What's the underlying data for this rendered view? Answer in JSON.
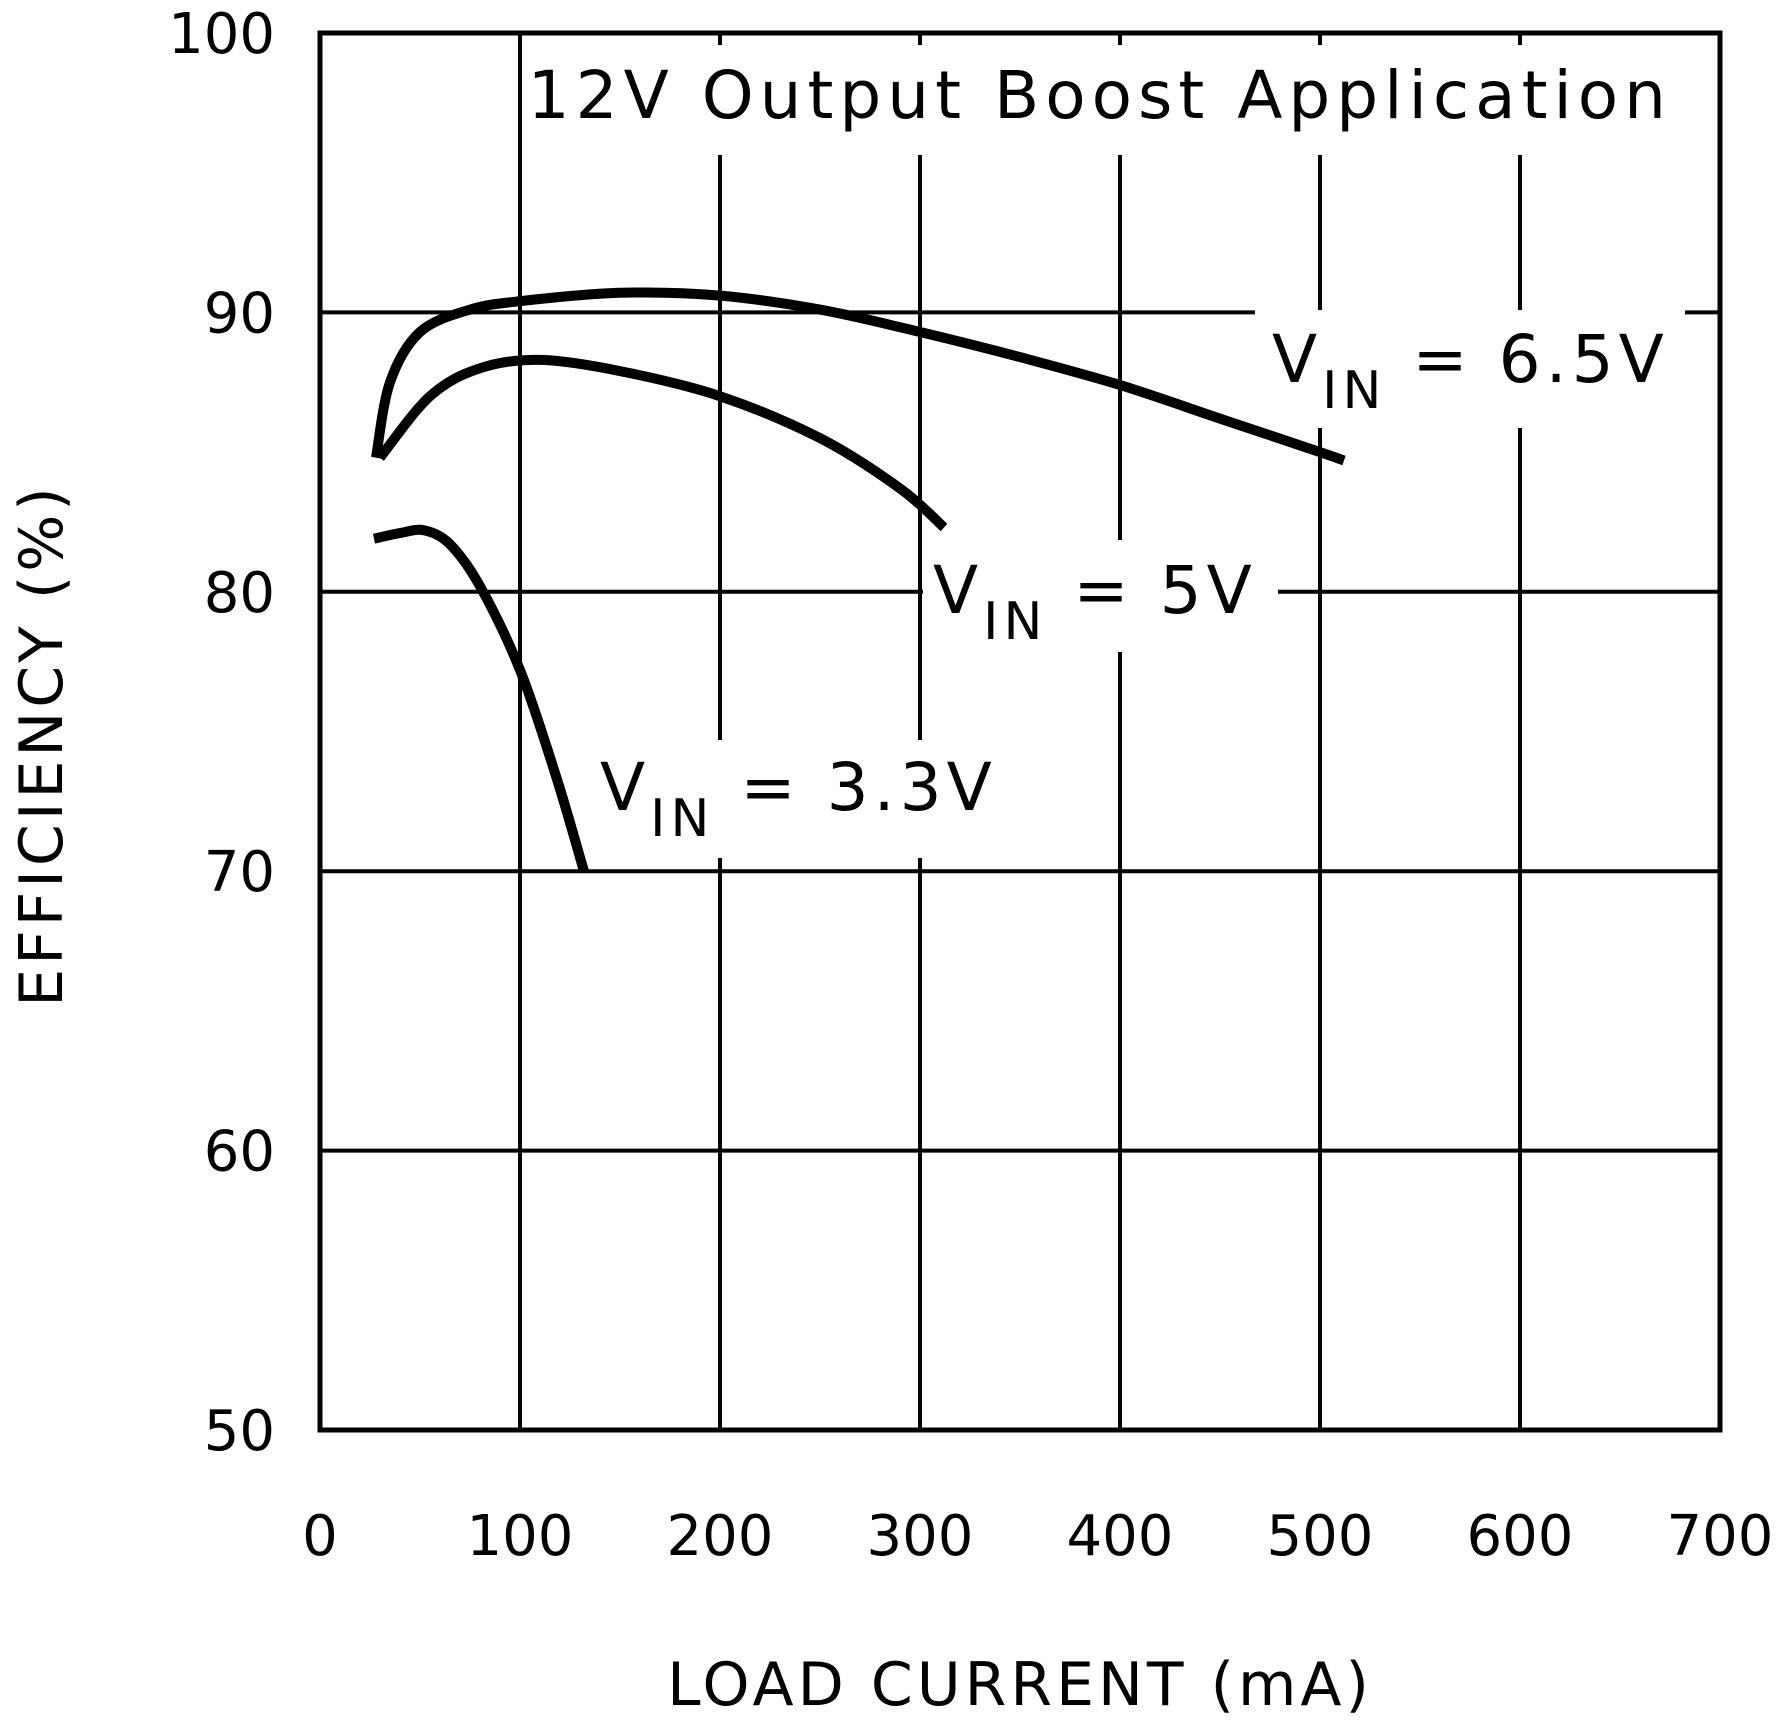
{
  "chart_data": {
    "type": "line",
    "annotation": "12V Output Boost Application",
    "xlabel": "LOAD CURRENT (mA)",
    "ylabel": "EFFICIENCY (%)",
    "xlim": [
      0,
      700
    ],
    "ylim": [
      50,
      100
    ],
    "xticks": [
      0,
      100,
      200,
      300,
      400,
      500,
      600,
      700
    ],
    "yticks": [
      50,
      60,
      70,
      80,
      90,
      100
    ],
    "grid": true,
    "series": [
      {
        "name": "VIN = 6.5V",
        "label_main": "V",
        "label_sub": "IN",
        "label_rest": " = 6.5V",
        "x": [
          28,
          35,
          50,
          75,
          100,
          150,
          200,
          250,
          300,
          350,
          400,
          450,
          500,
          512
        ],
        "y": [
          84.8,
          87.5,
          89.3,
          90.1,
          90.4,
          90.7,
          90.6,
          90.1,
          89.3,
          88.4,
          87.4,
          86.2,
          85.0,
          84.7
        ]
      },
      {
        "name": "VIN = 5V",
        "label_main": "V",
        "label_sub": "IN",
        "label_rest": " = 5V",
        "x": [
          30,
          55,
          80,
          110,
          150,
          200,
          250,
          290,
          312
        ],
        "y": [
          84.8,
          87.0,
          88.0,
          88.3,
          87.9,
          87.0,
          85.5,
          83.7,
          82.3
        ]
      },
      {
        "name": "VIN = 3.3V",
        "label_main": "V",
        "label_sub": "IN",
        "label_rest": " = 3.3V",
        "x": [
          27,
          40,
          52,
          65,
          80,
          100,
          118,
          132
        ],
        "y": [
          81.9,
          82.1,
          82.2,
          81.7,
          80.2,
          77.2,
          73.4,
          70.0
        ]
      }
    ]
  }
}
